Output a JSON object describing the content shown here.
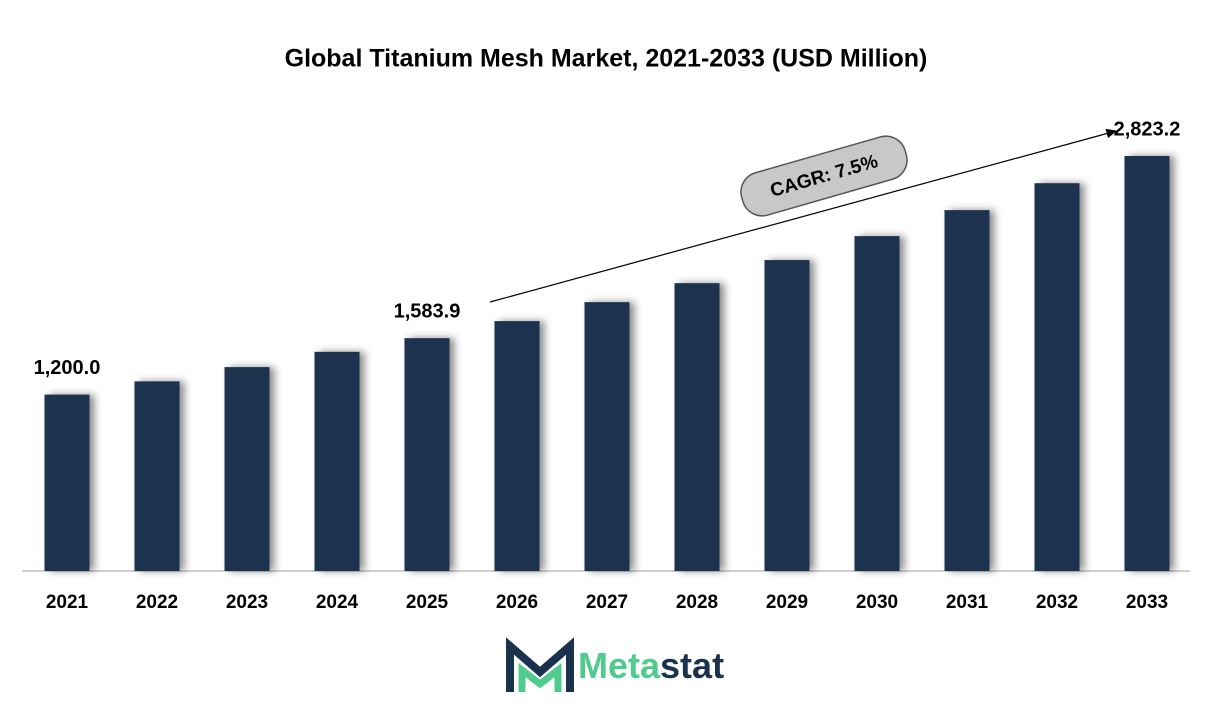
{
  "chart_data": {
    "type": "bar",
    "title": "Global Titanium Mesh Market, 2021-2033 (USD Million)",
    "categories": [
      "2021",
      "2022",
      "2023",
      "2024",
      "2025",
      "2026",
      "2027",
      "2028",
      "2029",
      "2030",
      "2031",
      "2032",
      "2033"
    ],
    "values": [
      1200.0,
      1290,
      1387,
      1491,
      1583.9,
      1700,
      1829,
      1958,
      2115,
      2278,
      2455,
      2638,
      2823.2
    ],
    "value_labels": [
      "1,200.0",
      null,
      null,
      null,
      "1,583.9",
      null,
      null,
      null,
      null,
      null,
      null,
      null,
      "2,823.2"
    ],
    "color": "#1b324f",
    "ylim": [
      0,
      3000
    ],
    "annotation": "CAGR: 7.5%"
  },
  "logo": {
    "text_1": "Meta",
    "text_2": "stat"
  }
}
